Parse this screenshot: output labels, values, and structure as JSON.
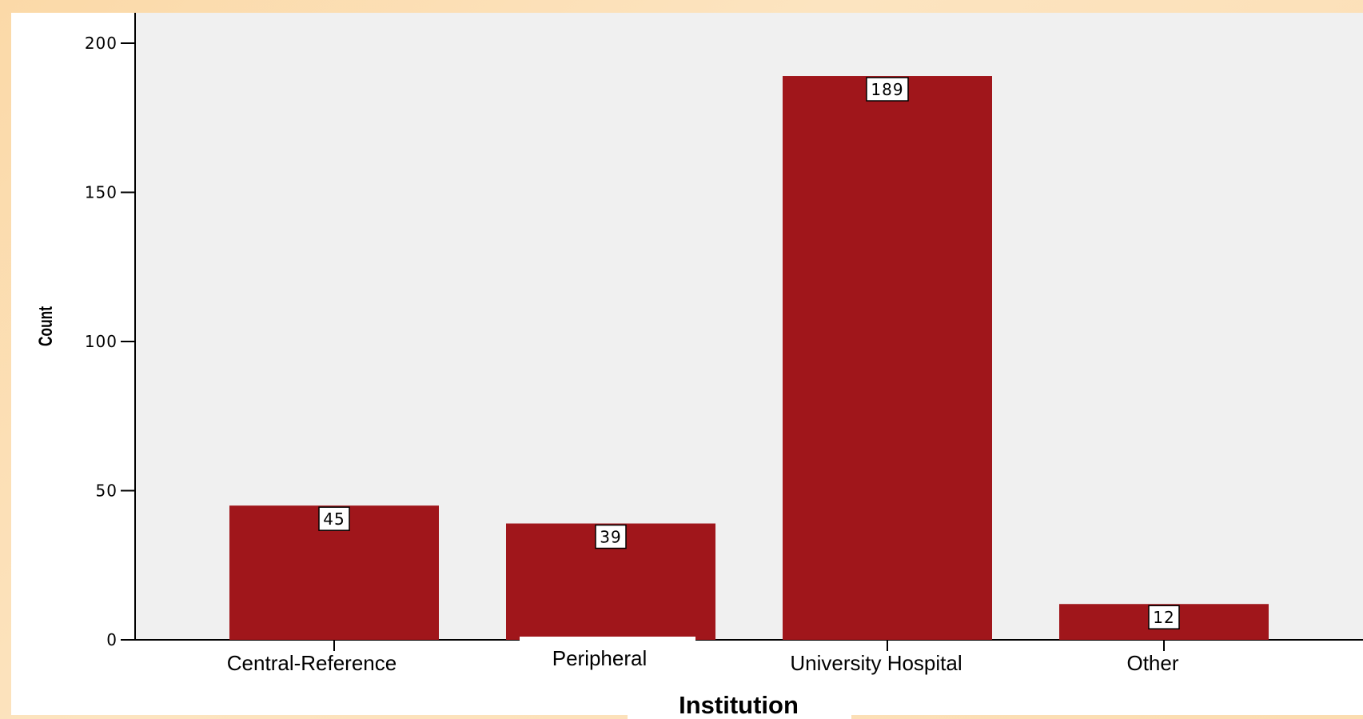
{
  "chart_data": {
    "type": "bar",
    "categories": [
      "Central-Reference",
      "Peripheral",
      "University Hospital",
      "Other"
    ],
    "values": [
      45,
      39,
      189,
      12
    ],
    "data_labels": [
      "45",
      "39",
      "189",
      "12"
    ],
    "title": "",
    "xlabel": "Institution",
    "ylabel": "Count",
    "ylim": [
      0,
      200
    ],
    "yticks": [
      0,
      50,
      100,
      150,
      200
    ],
    "grid": false,
    "legend": "none",
    "colors": {
      "bar": "#a0161b",
      "plot_background": "#f0f0f0",
      "page_background": "#fbd9a8"
    }
  }
}
